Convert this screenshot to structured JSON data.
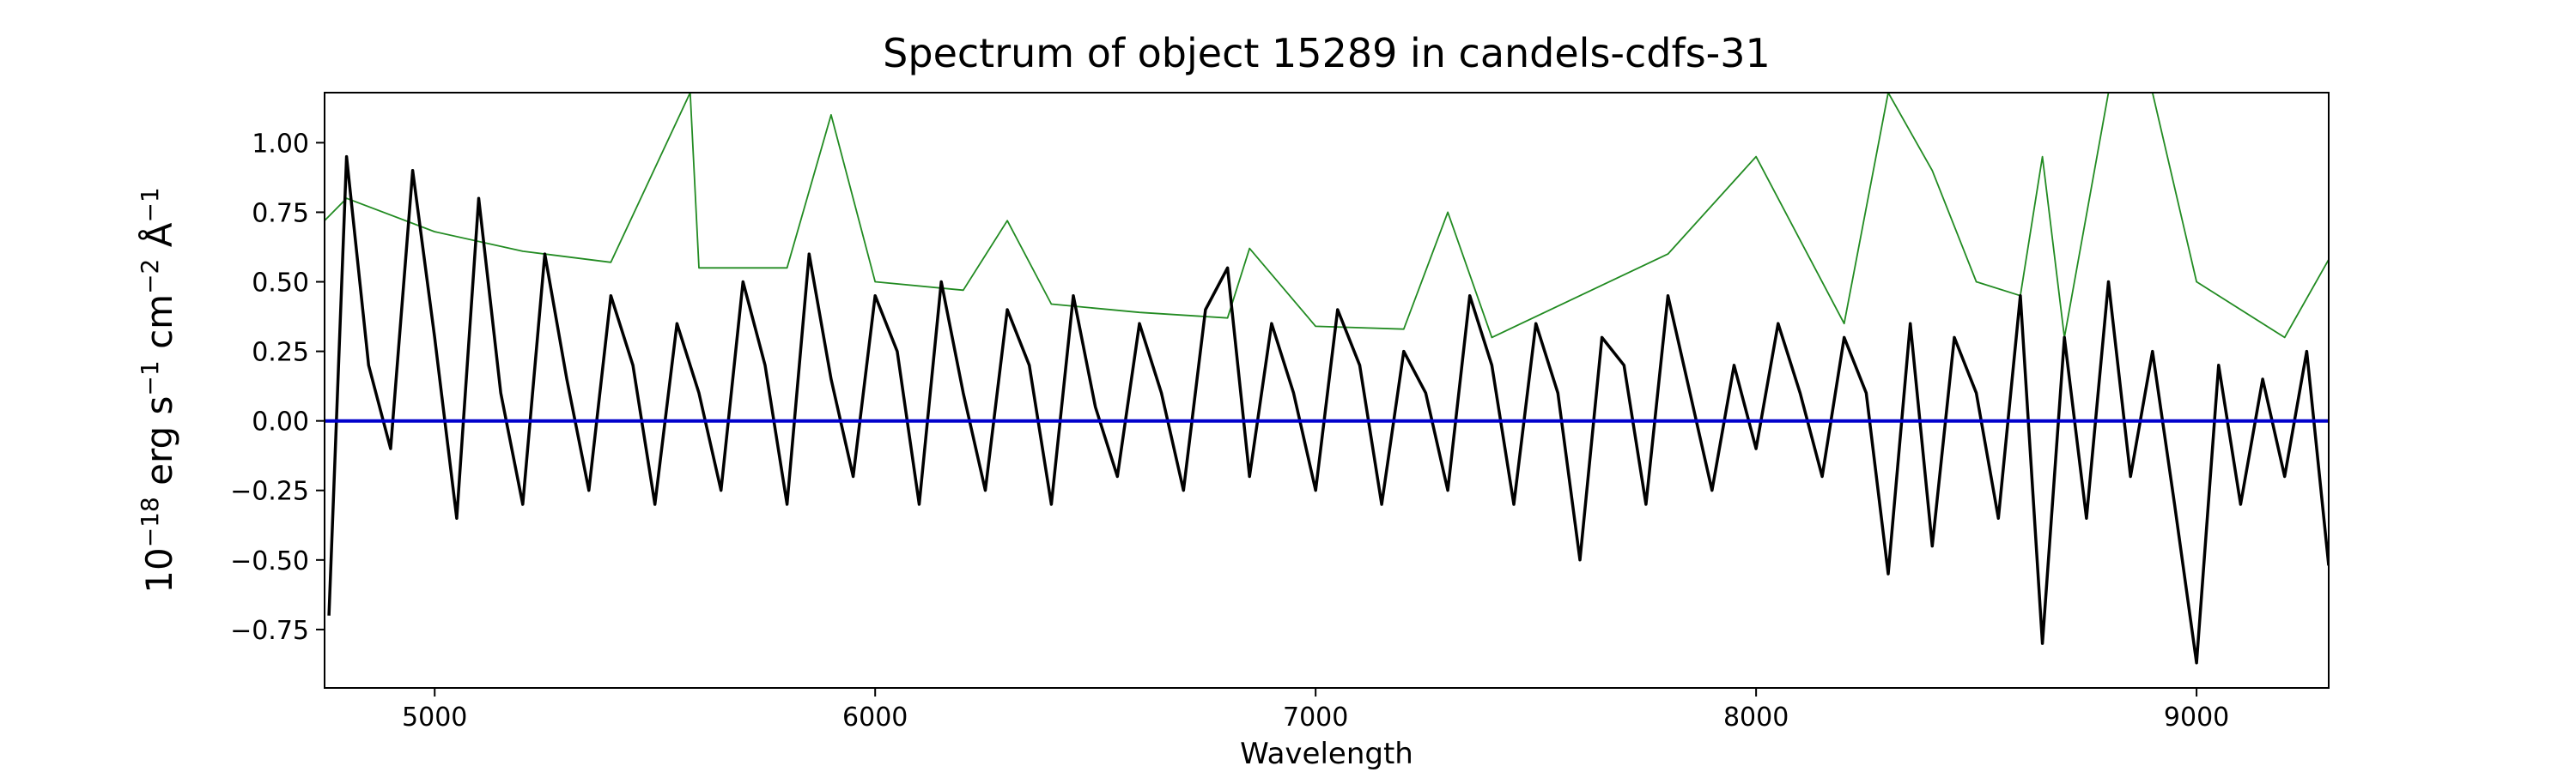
{
  "chart_data": {
    "type": "line",
    "title": "Spectrum of object 15289 in candels-cdfs-31",
    "xlabel": "Wavelength",
    "ylabel": {
      "base": "10",
      "exp1": "−18",
      "mid1": " erg s",
      "exp2": "−1",
      "mid2": " cm",
      "exp3": "−2",
      "mid3": " Å",
      "exp4": "−1"
    },
    "xlim": [
      4750,
      9300
    ],
    "ylim": [
      -0.96,
      1.18
    ],
    "x_ticks": [
      5000,
      6000,
      7000,
      8000,
      9000
    ],
    "x_tick_labels": [
      "5000",
      "6000",
      "7000",
      "8000",
      "9000"
    ],
    "y_ticks": [
      -0.75,
      -0.5,
      -0.25,
      0.0,
      0.25,
      0.5,
      0.75,
      1.0
    ],
    "y_tick_labels": [
      "−0.75",
      "−0.50",
      "−0.25",
      "0.00",
      "0.25",
      "0.50",
      "0.75",
      "1.00"
    ],
    "grid": false,
    "colors": {
      "flux": "#000000",
      "error": "#228b22",
      "zero": "#0000cc"
    },
    "series": [
      {
        "key": "flux",
        "x": [
          4760,
          4800,
          4850,
          4900,
          4950,
          5000,
          5050,
          5100,
          5150,
          5200,
          5250,
          5300,
          5350,
          5400,
          5450,
          5500,
          5550,
          5600,
          5650,
          5700,
          5750,
          5800,
          5850,
          5900,
          5950,
          6000,
          6050,
          6100,
          6150,
          6200,
          6250,
          6300,
          6350,
          6400,
          6450,
          6500,
          6550,
          6600,
          6650,
          6700,
          6750,
          6800,
          6850,
          6900,
          6950,
          7000,
          7050,
          7100,
          7150,
          7200,
          7250,
          7300,
          7350,
          7400,
          7450,
          7500,
          7550,
          7600,
          7650,
          7700,
          7750,
          7800,
          7850,
          7900,
          7950,
          8000,
          8050,
          8100,
          8150,
          8200,
          8250,
          8300,
          8350,
          8400,
          8450,
          8500,
          8550,
          8600,
          8650,
          8700,
          8750,
          8800,
          8850,
          8900,
          8950,
          9000,
          9050,
          9100,
          9150,
          9200,
          9250,
          9300
        ],
        "y": [
          -0.7,
          0.95,
          0.2,
          -0.1,
          0.9,
          0.3,
          -0.35,
          0.8,
          0.1,
          -0.3,
          0.6,
          0.15,
          -0.25,
          0.45,
          0.2,
          -0.3,
          0.35,
          0.1,
          -0.25,
          0.5,
          0.2,
          -0.3,
          0.6,
          0.15,
          -0.2,
          0.45,
          0.25,
          -0.3,
          0.5,
          0.1,
          -0.25,
          0.4,
          0.2,
          -0.3,
          0.45,
          0.05,
          -0.2,
          0.35,
          0.1,
          -0.25,
          0.4,
          0.55,
          -0.2,
          0.35,
          0.1,
          -0.25,
          0.4,
          0.2,
          -0.3,
          0.25,
          0.1,
          -0.25,
          0.45,
          0.2,
          -0.3,
          0.35,
          0.1,
          -0.5,
          0.3,
          0.2,
          -0.3,
          0.45,
          0.1,
          -0.25,
          0.2,
          -0.1,
          0.35,
          0.1,
          -0.2,
          0.3,
          0.1,
          -0.55,
          0.35,
          -0.45,
          0.3,
          0.1,
          -0.35,
          0.45,
          -0.8,
          0.3,
          -0.35,
          0.5,
          -0.2,
          0.25,
          -0.3,
          -0.87,
          0.2,
          -0.3,
          0.15,
          -0.2,
          0.25,
          -0.52
        ]
      },
      {
        "key": "error",
        "x": [
          4750,
          4800,
          5000,
          5200,
          5400,
          5580,
          5600,
          5800,
          5900,
          6000,
          6200,
          6300,
          6400,
          6600,
          6800,
          6850,
          7000,
          7200,
          7300,
          7400,
          7600,
          7800,
          8000,
          8200,
          8300,
          8400,
          8500,
          8600,
          8650,
          8700,
          8800,
          8900,
          9000,
          9200,
          9300
        ],
        "y": [
          0.72,
          0.8,
          0.68,
          0.61,
          0.57,
          1.18,
          0.55,
          0.55,
          1.1,
          0.5,
          0.47,
          0.72,
          0.42,
          0.39,
          0.37,
          0.62,
          0.34,
          0.33,
          0.75,
          0.3,
          0.45,
          0.6,
          0.95,
          0.35,
          1.18,
          0.9,
          0.5,
          0.45,
          0.95,
          0.3,
          1.18,
          1.18,
          0.5,
          0.3,
          0.58
        ]
      },
      {
        "key": "zero",
        "x": [
          4750,
          9300
        ],
        "y": [
          0.0,
          0.0
        ]
      }
    ]
  }
}
